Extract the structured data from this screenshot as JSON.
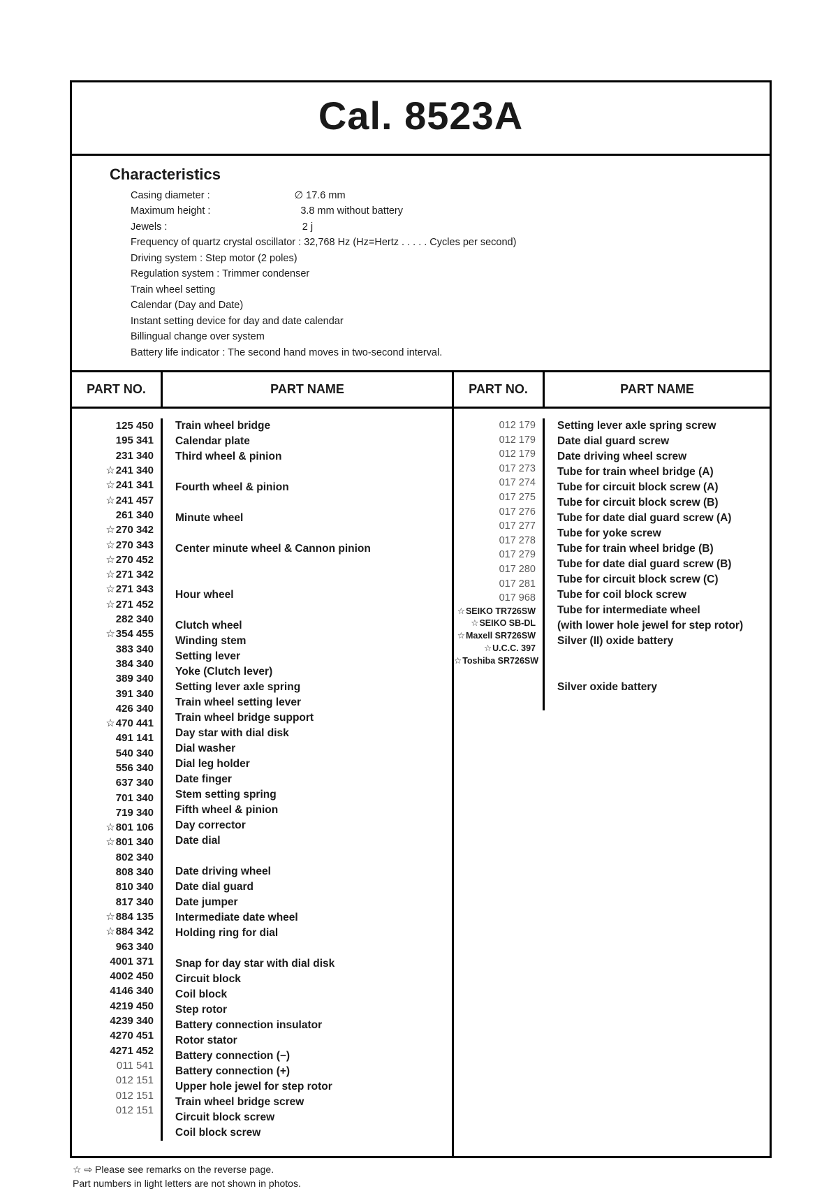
{
  "title": "Cal.  8523A",
  "characteristics": {
    "heading": "Characteristics",
    "lines": [
      "Casing diameter :                              ∅ 17.6 mm",
      "Maximum height :                                3.8 mm without battery",
      "Jewels :                                                2 j",
      "Frequency of quartz crystal oscillator : 32,768 Hz (Hz=Hertz . . . . . Cycles per second)",
      "Driving system : Step motor (2 poles)",
      "Regulation system : Trimmer condenser",
      "Train wheel setting",
      "Calendar (Day and Date)",
      "Instant setting device for day and date calendar",
      "Billingual change over system",
      "Battery life indicator : The second hand moves in two-second interval."
    ]
  },
  "headers": {
    "no": "PART NO.",
    "name": "PART NAME"
  },
  "left": {
    "nos": [
      {
        "t": "125 450"
      },
      {
        "t": "195 341"
      },
      {
        "t": "231 340"
      },
      {
        "t": "241 340",
        "star": true,
        "brk": "open"
      },
      {
        "t": "241 341",
        "star": true
      },
      {
        "t": "241 457",
        "star": true,
        "brk": "close"
      },
      {
        "t": "261 340"
      },
      {
        "t": "270 342",
        "star": true,
        "brk": "open"
      },
      {
        "t": "270 343",
        "star": true
      },
      {
        "t": "270 452",
        "star": true,
        "brk": "close"
      },
      {
        "t": "271 342",
        "star": true,
        "brk": "open"
      },
      {
        "t": "271 343",
        "star": true
      },
      {
        "t": "271 452",
        "star": true,
        "brk": "close"
      },
      {
        "t": "282 340"
      },
      {
        "t": "354 455",
        "star": true
      },
      {
        "t": "383 340"
      },
      {
        "t": "384 340"
      },
      {
        "t": "389 340"
      },
      {
        "t": "391 340"
      },
      {
        "t": "426 340"
      },
      {
        "t": "470 441",
        "star": true
      },
      {
        "t": "491 141"
      },
      {
        "t": "540 340"
      },
      {
        "t": "556 340"
      },
      {
        "t": "637 340"
      },
      {
        "t": "701 340"
      },
      {
        "t": "719 340"
      },
      {
        "t": "801 106",
        "star": true,
        "brk": "open2"
      },
      {
        "t": "801 340",
        "star": true,
        "brk": "close"
      },
      {
        "t": "802 340"
      },
      {
        "t": "808 340"
      },
      {
        "t": "810 340"
      },
      {
        "t": "817 340"
      },
      {
        "t": "884 135",
        "star": true,
        "brk": "open2"
      },
      {
        "t": "884 342",
        "star": true,
        "brk": "close"
      },
      {
        "t": "963 340"
      },
      {
        "t": "4001 371"
      },
      {
        "t": "4002 450"
      },
      {
        "t": "4146 340"
      },
      {
        "t": "4219 450"
      },
      {
        "t": "4239 340"
      },
      {
        "t": "4270 451"
      },
      {
        "t": "4271 452"
      },
      {
        "t": "011 541",
        "lite": true
      },
      {
        "t": "012 151",
        "lite": true
      },
      {
        "t": "012 151",
        "lite": true
      },
      {
        "t": "012 151",
        "lite": true
      }
    ],
    "names": [
      "Train wheel bridge",
      "Calendar plate",
      "Third wheel & pinion",
      "",
      "Fourth wheel & pinion",
      "",
      "Minute wheel",
      "",
      "Center minute wheel & Cannon pinion",
      "",
      "",
      "Hour wheel",
      "",
      "Clutch wheel",
      "Winding stem",
      "Setting lever",
      "Yoke (Clutch lever)",
      "Setting lever axle spring",
      "Train wheel setting lever",
      "Train wheel bridge support",
      "Day star with dial disk",
      "Dial washer",
      "Dial leg holder",
      "Date finger",
      "Stem setting spring",
      "Fifth wheel & pinion",
      "Day corrector",
      "Date dial",
      "",
      "Date driving wheel",
      "Date dial guard",
      "Date jumper",
      "Intermediate date wheel",
      "Holding ring for dial",
      "",
      "Snap for day star with dial disk",
      "Circuit block",
      "Coil block",
      "Step rotor",
      "Battery connection insulator",
      "Rotor stator",
      "Battery connection (−)",
      "Battery connection (+)",
      "Upper hole jewel for step rotor",
      "Train wheel bridge screw",
      "Circuit block screw",
      "Coil block screw"
    ]
  },
  "right": {
    "nos": [
      {
        "t": "012 179",
        "lite": true
      },
      {
        "t": "012 179",
        "lite": true
      },
      {
        "t": "012 179",
        "lite": true
      },
      {
        "t": "017 273",
        "lite": true
      },
      {
        "t": "017 274",
        "lite": true
      },
      {
        "t": "017 275",
        "lite": true
      },
      {
        "t": "017 276",
        "lite": true
      },
      {
        "t": "017 277",
        "lite": true
      },
      {
        "t": "017 278",
        "lite": true
      },
      {
        "t": "017 279",
        "lite": true
      },
      {
        "t": "017 280",
        "lite": true
      },
      {
        "t": "017 281",
        "lite": true
      },
      {
        "t": "017 968",
        "lite": true
      },
      {
        "t": ""
      },
      {
        "t": "SEIKO TR726SW",
        "star": true,
        "sm": true,
        "brk": "open2"
      },
      {
        "t": "SEIKO SB-DL",
        "star": true,
        "sm": true,
        "brk": "close"
      },
      {
        "t": "Maxell SR726SW",
        "star": true,
        "sm": true,
        "brk": "open"
      },
      {
        "t": "U.C.C. 397",
        "star": true,
        "sm": true
      },
      {
        "t": "Toshiba SR726SW",
        "star": true,
        "sm": true,
        "brk": "close"
      }
    ],
    "names": [
      "Setting lever axle spring screw",
      "Date dial guard screw",
      "Date driving wheel screw",
      "Tube for train wheel bridge (A)",
      "Tube for circuit block screw (A)",
      "Tube for circuit block screw (B)",
      "Tube for date dial guard screw (A)",
      "Tube for yoke screw",
      "Tube for train wheel bridge (B)",
      "Tube for date dial guard screw (B)",
      "Tube for circuit block screw (C)",
      "Tube for coil block screw",
      "Tube for intermediate wheel",
      "(with lower hole jewel for step rotor)",
      "Silver (II) oxide battery",
      "",
      "",
      "Silver oxide battery",
      ""
    ]
  },
  "footnotes": [
    "☆ ⇨ Please see remarks on the reverse page.",
    "Part numbers in light letters are not shown in photos."
  ]
}
